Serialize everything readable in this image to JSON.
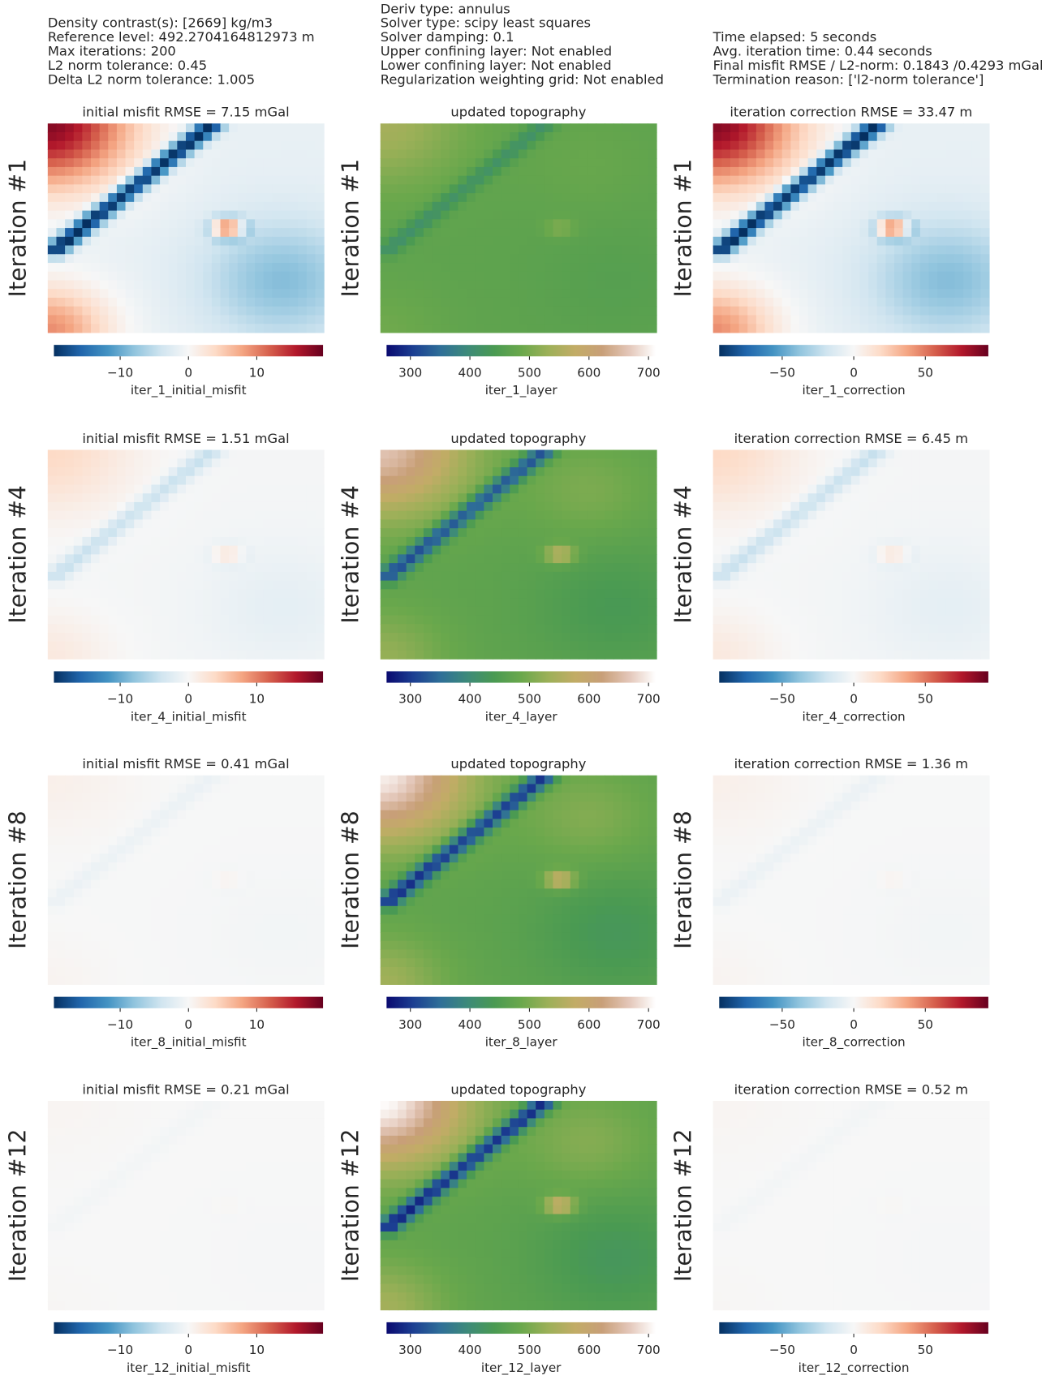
{
  "header": {
    "columns": [
      [
        "Density contrast(s): [2669] kg/m3",
        "Reference level: 492.2704164812973 m",
        "Max iterations: 200",
        "L2 norm tolerance: 0.45",
        "Delta L2 norm tolerance: 1.005"
      ],
      [
        "Deriv type: annulus",
        "Solver type: scipy least squares",
        "Solver damping: 0.1",
        "Upper confining layer: Not enabled",
        "Lower confining layer: Not enabled",
        "Regularization weighting grid: Not enabled"
      ],
      [
        "Time elapsed: 5 seconds",
        "Avg. iteration time: 0.44 seconds",
        "Final misfit RMSE / L2-norm: 0.1843 /0.4293 mGal",
        "Termination reason: ['l2-norm tolerance']"
      ]
    ]
  },
  "chart_data": [
    {
      "type": "heatmap",
      "title": "initial misfit RMSE = 7.15 mGal",
      "ylabel": "Iteration #1",
      "colorbar_label": "iter_1_initial_misfit",
      "colormap": "RdBu_r",
      "clim": [
        -19.7,
        19.7
      ],
      "cticks": [
        {
          "value": -10,
          "label": "−10"
        },
        0,
        10
      ]
    },
    {
      "type": "heatmap",
      "title": "updated topography",
      "ylabel": "Iteration #1",
      "colorbar_label": "iter_1_layer",
      "colormap": "gist_earth",
      "clim": [
        260,
        712
      ],
      "cticks": [
        300,
        400,
        500,
        600,
        700
      ]
    },
    {
      "type": "heatmap",
      "title": "iteration correction RMSE = 33.47 m",
      "ylabel": "Iteration #1",
      "colorbar_label": "iter_1_correction",
      "colormap": "RdBu_r",
      "clim": [
        -94,
        94
      ],
      "cticks": [
        {
          "value": -50,
          "label": "−50"
        },
        0,
        50
      ]
    },
    {
      "type": "heatmap",
      "title": "initial misfit RMSE = 1.51 mGal",
      "ylabel": "Iteration #4",
      "colorbar_label": "iter_4_initial_misfit",
      "colormap": "RdBu_r",
      "clim": [
        -19.7,
        19.7
      ],
      "cticks": [
        {
          "value": -10,
          "label": "−10"
        },
        0,
        10
      ]
    },
    {
      "type": "heatmap",
      "title": "updated topography",
      "ylabel": "Iteration #4",
      "colorbar_label": "iter_4_layer",
      "colormap": "gist_earth",
      "clim": [
        260,
        712
      ],
      "cticks": [
        300,
        400,
        500,
        600,
        700
      ]
    },
    {
      "type": "heatmap",
      "title": "iteration correction RMSE = 6.45 m",
      "ylabel": "Iteration #4",
      "colorbar_label": "iter_4_correction",
      "colormap": "RdBu_r",
      "clim": [
        -94,
        94
      ],
      "cticks": [
        {
          "value": -50,
          "label": "−50"
        },
        0,
        50
      ]
    },
    {
      "type": "heatmap",
      "title": "initial misfit RMSE = 0.41 mGal",
      "ylabel": "Iteration #8",
      "colorbar_label": "iter_8_initial_misfit",
      "colormap": "RdBu_r",
      "clim": [
        -19.7,
        19.7
      ],
      "cticks": [
        {
          "value": -10,
          "label": "−10"
        },
        0,
        10
      ]
    },
    {
      "type": "heatmap",
      "title": "updated topography",
      "ylabel": "Iteration #8",
      "colorbar_label": "iter_8_layer",
      "colormap": "gist_earth",
      "clim": [
        260,
        712
      ],
      "cticks": [
        300,
        400,
        500,
        600,
        700
      ]
    },
    {
      "type": "heatmap",
      "title": "iteration correction RMSE = 1.36 m",
      "ylabel": "Iteration #8",
      "colorbar_label": "iter_8_correction",
      "colormap": "RdBu_r",
      "clim": [
        -94,
        94
      ],
      "cticks": [
        {
          "value": -50,
          "label": "−50"
        },
        0,
        50
      ]
    },
    {
      "type": "heatmap",
      "title": "initial misfit RMSE = 0.21 mGal",
      "ylabel": "Iteration #12",
      "colorbar_label": "iter_12_initial_misfit",
      "colormap": "RdBu_r",
      "clim": [
        -19.7,
        19.7
      ],
      "cticks": [
        {
          "value": -10,
          "label": "−10"
        },
        0,
        10
      ]
    },
    {
      "type": "heatmap",
      "title": "updated topography",
      "ylabel": "Iteration #12",
      "colorbar_label": "iter_12_layer",
      "colormap": "gist_earth",
      "clim": [
        260,
        712
      ],
      "cticks": [
        300,
        400,
        500,
        600,
        700
      ]
    },
    {
      "type": "heatmap",
      "title": "iteration correction RMSE = 0.52 m",
      "ylabel": "Iteration #12",
      "colorbar_label": "iter_12_correction",
      "colormap": "RdBu_r",
      "clim": [
        -94,
        94
      ],
      "cticks": [
        {
          "value": -50,
          "label": "−50"
        },
        0,
        50
      ]
    }
  ]
}
